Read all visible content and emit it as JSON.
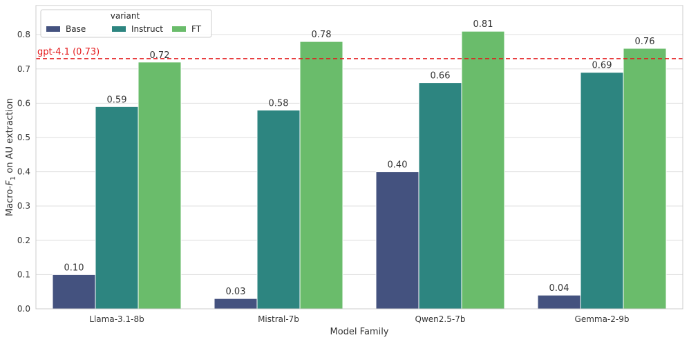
{
  "chart_data": {
    "type": "bar",
    "categories": [
      "Llama-3.1-8b",
      "Mistral-7b",
      "Qwen2.5-7b",
      "Gemma-2-9b"
    ],
    "series": [
      {
        "name": "Base",
        "values": [
          0.1,
          0.03,
          0.4,
          0.04
        ],
        "labels": [
          "0.10",
          "0.03",
          "0.40",
          "0.04"
        ],
        "color": "#44527f"
      },
      {
        "name": "Instruct",
        "values": [
          0.59,
          0.58,
          0.66,
          0.69
        ],
        "labels": [
          "0.59",
          "0.58",
          "0.66",
          "0.69"
        ],
        "color": "#2d8580"
      },
      {
        "name": "FT",
        "values": [
          0.72,
          0.78,
          0.81,
          0.76
        ],
        "labels": [
          "0.72",
          "0.78",
          "0.81",
          "0.76"
        ],
        "color": "#6abc6b"
      }
    ],
    "xlabel": "Model Family",
    "ylabel_prefix": "Macro-",
    "ylabel_var": "F",
    "ylabel_sub": "1",
    "ylabel_suffix": " on AU extraction",
    "ylim": [
      0,
      0.885
    ],
    "yticks": [
      0.0,
      0.1,
      0.2,
      0.3,
      0.4,
      0.5,
      0.6,
      0.7,
      0.8
    ],
    "ytick_labels": [
      "0.0",
      "0.1",
      "0.2",
      "0.3",
      "0.4",
      "0.5",
      "0.6",
      "0.7",
      "0.8"
    ],
    "grid": true,
    "legend": {
      "title": "variant",
      "position": "top-left",
      "ncol": 3
    },
    "reference_line": {
      "value": 0.73,
      "label": "gpt-4.1 (0.73)",
      "color": "#e41a1c",
      "style": "dashed"
    }
  }
}
